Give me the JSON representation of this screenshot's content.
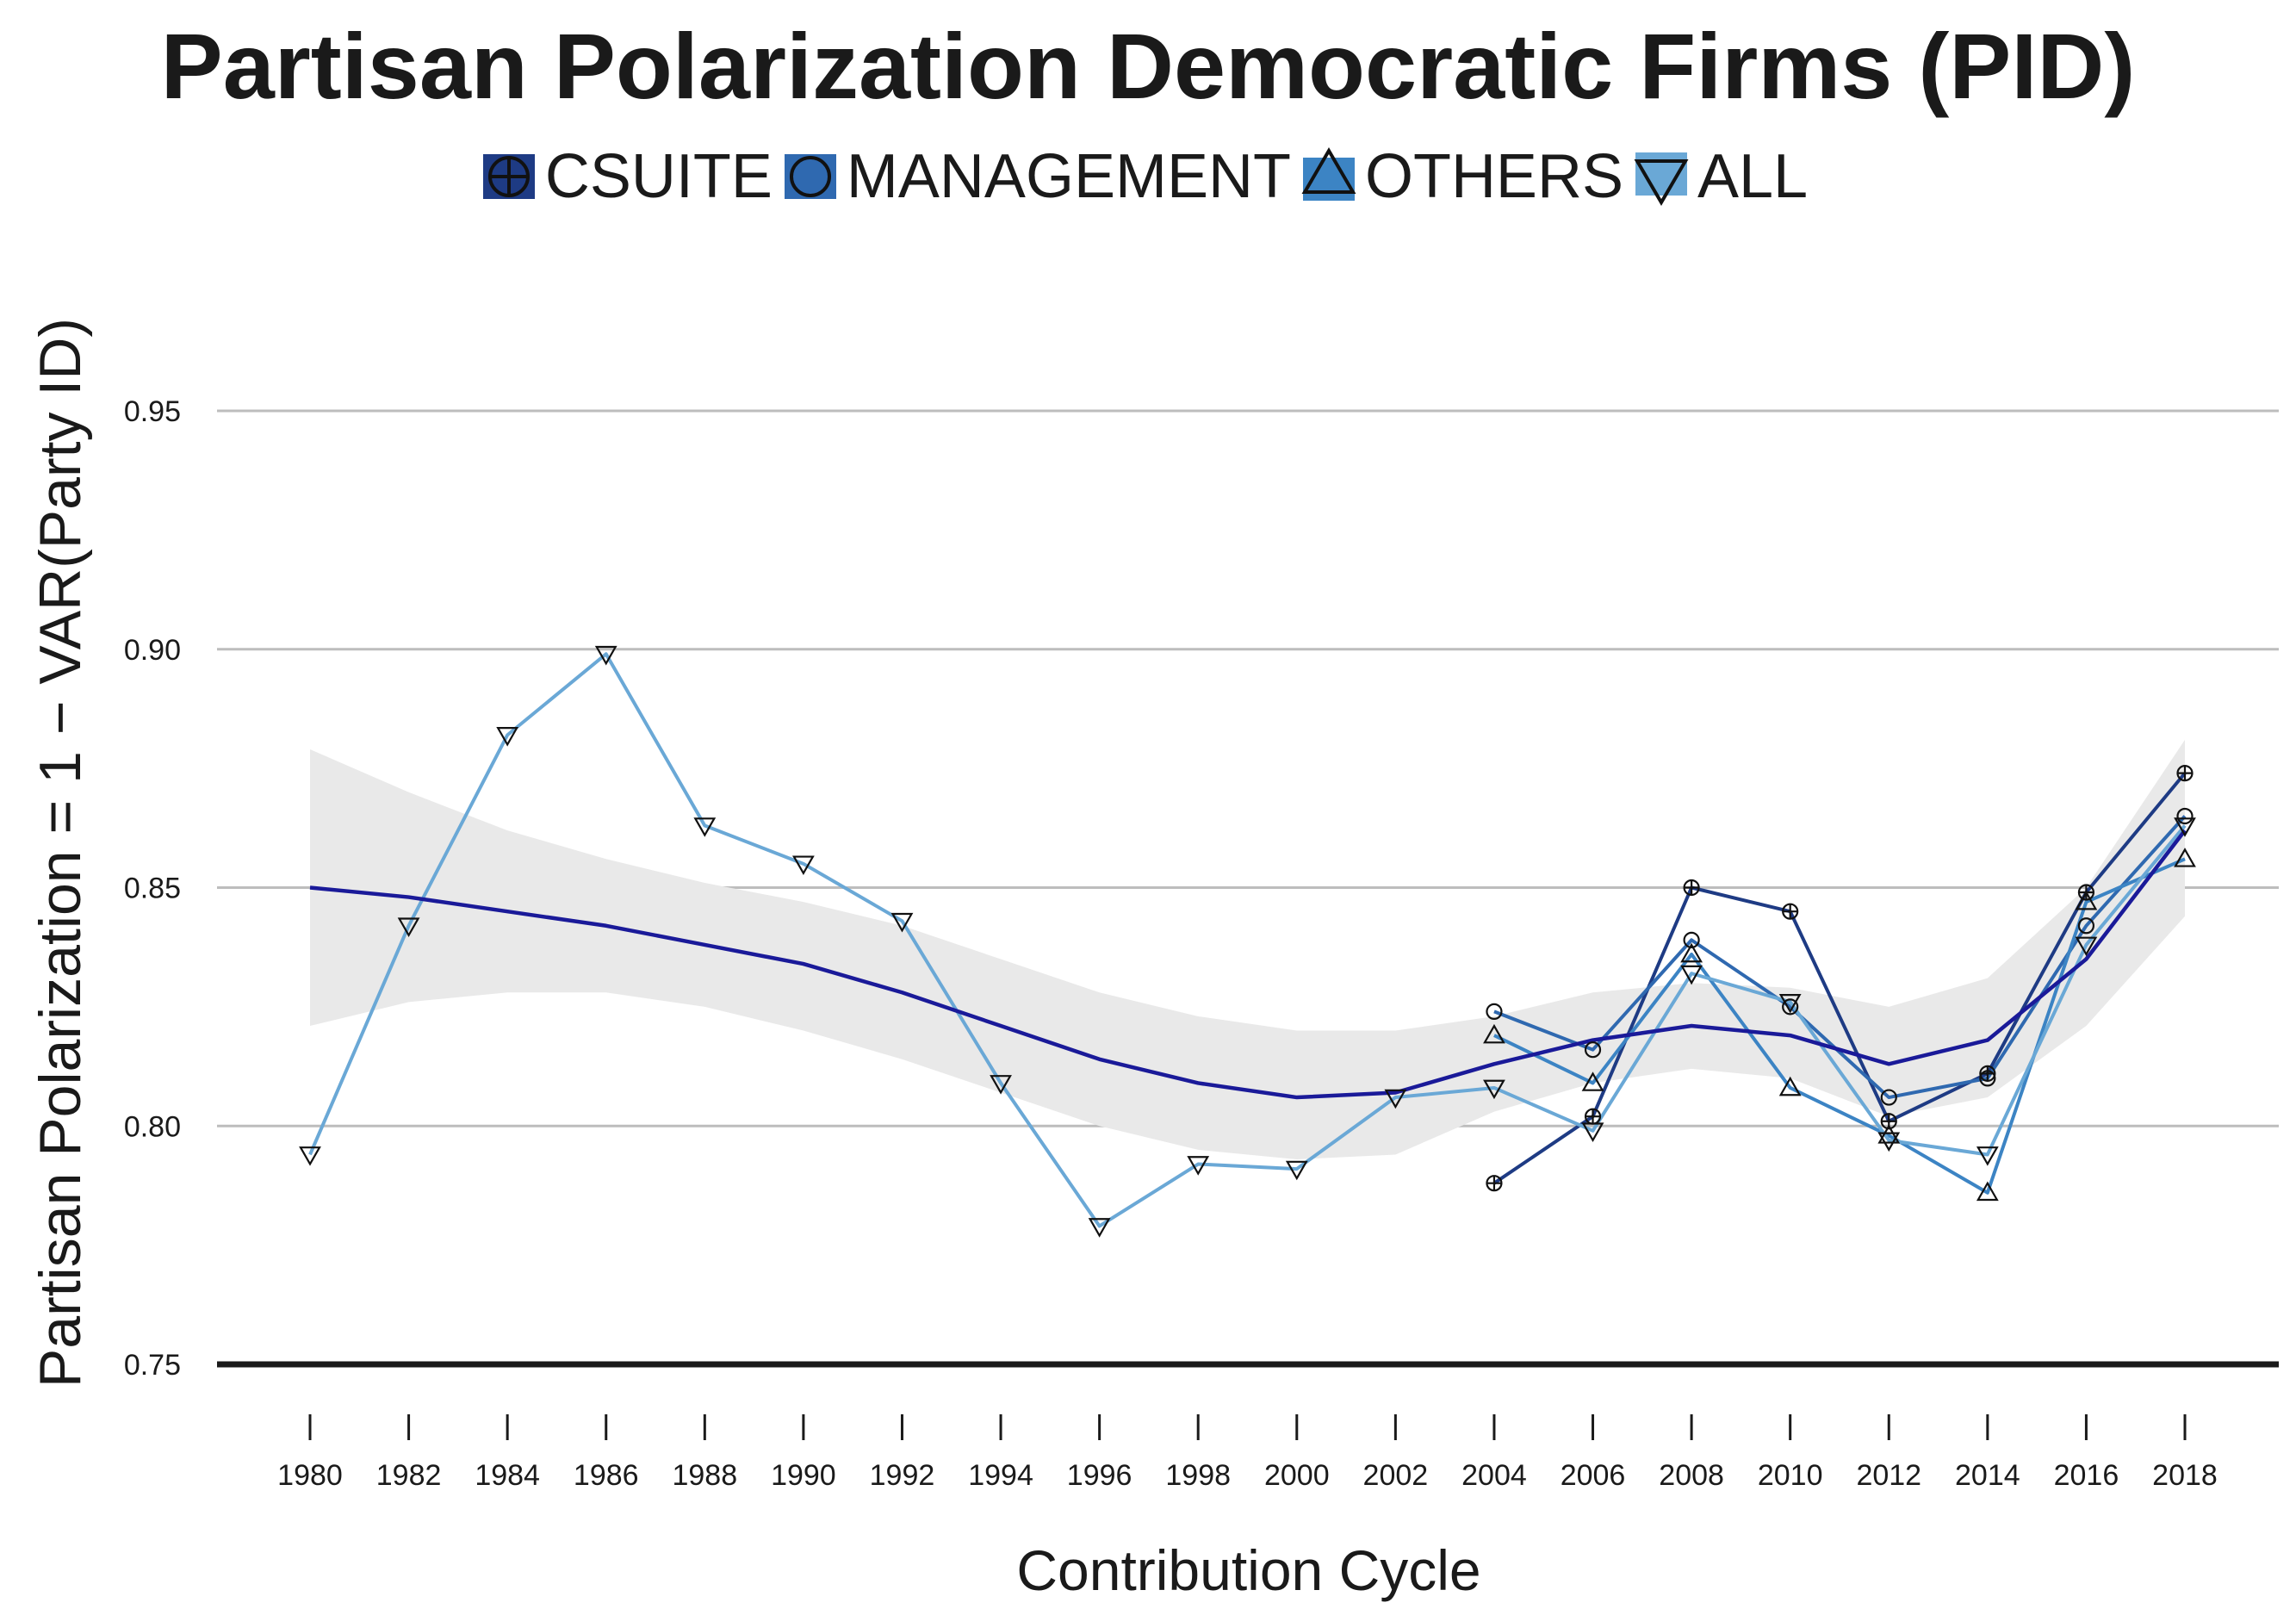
{
  "chart_data": {
    "type": "line",
    "title": "Partisan Polarization Democratic Firms (PID)",
    "xlabel": "Contribution Cycle",
    "ylabel": "Partisan Polarization = 1 − VAR(Party ID)",
    "ylim": [
      0.75,
      0.97
    ],
    "xlim": [
      1979,
      2020
    ],
    "yticks": [
      "0.75",
      "0.80",
      "0.85",
      "0.90",
      "0.95"
    ],
    "xticks": [
      "1980",
      "1982",
      "1984",
      "1986",
      "1988",
      "1990",
      "1992",
      "1994",
      "1996",
      "1998",
      "2000",
      "2002",
      "2004",
      "2006",
      "2008",
      "2010",
      "2012",
      "2014",
      "2016",
      "2018"
    ],
    "grid": "horizontal",
    "legend_position": "top",
    "series": [
      {
        "name": "CSUITE",
        "color": "#1e3b84",
        "marker": "circle-plus",
        "x": [
          2004,
          2006,
          2008,
          2010,
          2012,
          2014,
          2016,
          2018
        ],
        "y": [
          0.788,
          0.802,
          0.85,
          0.845,
          0.801,
          0.811,
          0.849,
          0.874
        ]
      },
      {
        "name": "MANAGEMENT",
        "color": "#2f69b0",
        "marker": "circle",
        "x": [
          2004,
          2006,
          2008,
          2010,
          2012,
          2014,
          2016,
          2018
        ],
        "y": [
          0.824,
          0.816,
          0.839,
          0.825,
          0.806,
          0.81,
          0.842,
          0.865
        ]
      },
      {
        "name": "OTHERS",
        "color": "#3c84c4",
        "marker": "triangle-up",
        "x": [
          2004,
          2006,
          2008,
          2010,
          2012,
          2014,
          2016,
          2018
        ],
        "y": [
          0.819,
          0.809,
          0.836,
          0.808,
          0.798,
          0.786,
          0.847,
          0.856
        ]
      },
      {
        "name": "ALL",
        "color": "#6aa8d6",
        "marker": "triangle-down",
        "x": [
          1980,
          1982,
          1984,
          1986,
          1988,
          1990,
          1992,
          1994,
          1996,
          1998,
          2000,
          2002,
          2004,
          2006,
          2008,
          2010,
          2012,
          2014,
          2016,
          2018
        ],
        "y": [
          0.794,
          0.842,
          0.882,
          0.899,
          0.863,
          0.855,
          0.843,
          0.809,
          0.779,
          0.792,
          0.791,
          0.806,
          0.808,
          0.799,
          0.832,
          0.826,
          0.797,
          0.794,
          0.838,
          0.863
        ]
      }
    ],
    "smooth": {
      "color": "#1a1a99",
      "band_color": "#e9e9e9",
      "x": [
        1980,
        1982,
        1984,
        1986,
        1988,
        1990,
        1992,
        1994,
        1996,
        1998,
        2000,
        2002,
        2004,
        2006,
        2008,
        2010,
        2012,
        2014,
        2016,
        2018
      ],
      "y": [
        0.85,
        0.848,
        0.845,
        0.842,
        0.838,
        0.834,
        0.828,
        0.821,
        0.814,
        0.809,
        0.806,
        0.807,
        0.813,
        0.818,
        0.821,
        0.819,
        0.813,
        0.818,
        0.835,
        0.862
      ],
      "lower": [
        0.821,
        0.826,
        0.828,
        0.828,
        0.825,
        0.82,
        0.814,
        0.807,
        0.8,
        0.795,
        0.793,
        0.794,
        0.803,
        0.809,
        0.812,
        0.81,
        0.802,
        0.806,
        0.821,
        0.844
      ],
      "upper": [
        0.879,
        0.87,
        0.862,
        0.856,
        0.851,
        0.847,
        0.842,
        0.835,
        0.828,
        0.823,
        0.82,
        0.82,
        0.823,
        0.828,
        0.83,
        0.829,
        0.825,
        0.831,
        0.85,
        0.881
      ]
    }
  }
}
